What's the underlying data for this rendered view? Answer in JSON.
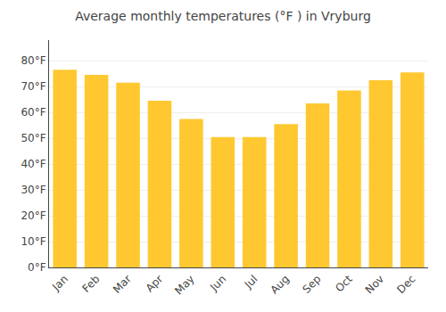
{
  "chart_data": {
    "type": "bar",
    "title": "Average monthly temperatures (°F ) in Vryburg",
    "categories": [
      "Jan",
      "Feb",
      "Mar",
      "Apr",
      "May",
      "Jun",
      "Jul",
      "Aug",
      "Sep",
      "Oct",
      "Nov",
      "Dec"
    ],
    "values": [
      76.5,
      74.5,
      71.5,
      64.5,
      57.5,
      50.5,
      50.5,
      55.5,
      63.5,
      68.5,
      72.5,
      75.5
    ],
    "color": "#FFC830",
    "ylim": [
      0,
      88
    ],
    "yticks": [
      {
        "value": 0,
        "label": "0°F"
      },
      {
        "value": 10,
        "label": "10°F"
      },
      {
        "value": 20,
        "label": "20°F"
      },
      {
        "value": 30,
        "label": "30°F"
      },
      {
        "value": 40,
        "label": "40°F"
      },
      {
        "value": 50,
        "label": "50°F"
      },
      {
        "value": 60,
        "label": "60°F"
      },
      {
        "value": 70,
        "label": "70°F"
      },
      {
        "value": 80,
        "label": "80°F"
      }
    ],
    "grid": true
  }
}
